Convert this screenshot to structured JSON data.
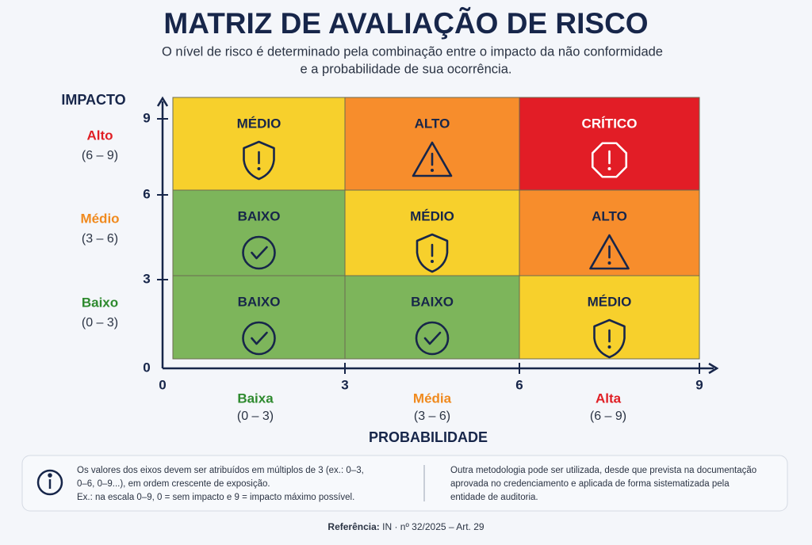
{
  "header": {
    "title": "MATRIZ DE AVALIAÇÃO DE RISCO",
    "subtitle": [
      "O nível de risco é determinado pela combinação entre o impacto da não conformidade",
      "e a probabilidade de sua ocorrência."
    ]
  },
  "y_axis": {
    "title": "IMPACTO",
    "ticks": [
      0,
      3,
      6,
      9
    ],
    "levels": [
      {
        "name": "Baixo",
        "range": "(0 – 3)",
        "color": "#2e8a2e"
      },
      {
        "name": "Médio",
        "range": "(3 – 6)",
        "color": "#f08a1e"
      },
      {
        "name": "Alto",
        "range": "(6 – 9)",
        "color": "#e01e24"
      }
    ]
  },
  "x_axis": {
    "title": "PROBABILIDADE",
    "ticks": [
      0,
      3,
      6,
      9
    ],
    "levels": [
      {
        "name": "Baixa",
        "range": "(0 – 3)",
        "color": "#2e8a2e"
      },
      {
        "name": "Média",
        "range": "(3 – 6)",
        "color": "#f08a1e"
      },
      {
        "name": "Alta",
        "range": "(6 – 9)",
        "color": "#e01e24"
      }
    ]
  },
  "matrix": {
    "rows": [
      {
        "cells": [
          {
            "label": "BAIXO",
            "color": "#7db55b",
            "icon": "check"
          },
          {
            "label": "BAIXO",
            "color": "#7db55b",
            "icon": "check"
          },
          {
            "label": "MÉDIO",
            "color": "#f7d02c",
            "icon": "shield"
          }
        ]
      },
      {
        "cells": [
          {
            "label": "BAIXO",
            "color": "#7db55b",
            "icon": "check"
          },
          {
            "label": "MÉDIO",
            "color": "#f7d02c",
            "icon": "shield"
          },
          {
            "label": "ALTO",
            "color": "#f78d2c",
            "icon": "triangle"
          }
        ]
      },
      {
        "cells": [
          {
            "label": "MÉDIO",
            "color": "#f7d02c",
            "icon": "shield"
          },
          {
            "label": "ALTO",
            "color": "#f78d2c",
            "icon": "triangle"
          },
          {
            "label": "CRÍTICO",
            "color": "#e21d26",
            "icon": "octagon"
          }
        ]
      }
    ]
  },
  "notes": {
    "left": [
      "Os valores dos eixos devem ser atribuídos em múltiplos de 3 (ex.: 0–3,",
      "0–6, 0–9...), em ordem crescente de exposição.",
      "Ex.: na escala 0–9, 0 = sem impacto e 9 = impacto máximo possível."
    ],
    "right": [
      "Outra metodologia pode ser utilizada, desde que prevista na documentação",
      "aprovada no credenciamento e aplicada de forma sistematizada pela",
      "entidade de auditoria."
    ]
  },
  "reference": {
    "label": "Referência:",
    "text": " IN · nº 32/2025 – Art. 29"
  }
}
